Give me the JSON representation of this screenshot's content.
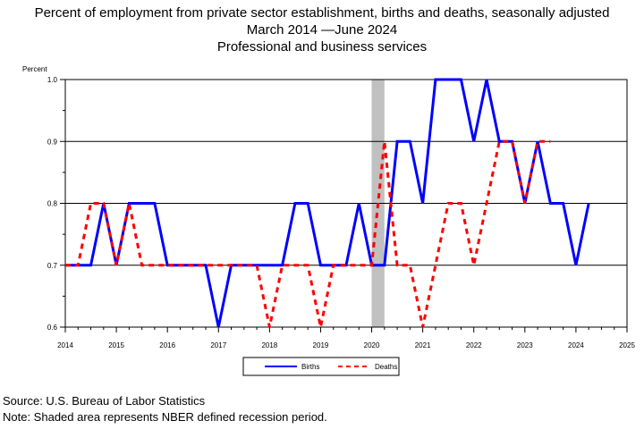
{
  "title": {
    "line1": "Percent of employment from private sector establishment, births and deaths, seasonally adjusted",
    "line2": "March 2014 —June 2024",
    "line3": "Professional and business services"
  },
  "footer": {
    "source": "Source: U.S. Bureau of Labor Statistics",
    "note": "Note: Shaded area represents NBER defined recession period."
  },
  "chart_data": {
    "type": "line",
    "ylabel": "Percent",
    "xlabel": "",
    "ylim": [
      0.6,
      1.0
    ],
    "xlim": [
      2014,
      2025
    ],
    "y_ticks": [
      "0.6",
      "0.7",
      "0.8",
      "0.9",
      "1.0"
    ],
    "x_ticks": [
      "2014",
      "2015",
      "2016",
      "2017",
      "2018",
      "2019",
      "2020",
      "2021",
      "2022",
      "2023",
      "2024",
      "2025"
    ],
    "grid": "horizontal",
    "legend_position": "bottom-center",
    "recession_shading": [
      2020.0,
      2020.25
    ],
    "recession_color": "#c0c0c0",
    "series": [
      {
        "name": "Births",
        "color": "#0000ff",
        "style": "solid",
        "x": [
          2014.0,
          2014.25,
          2014.5,
          2014.75,
          2015.0,
          2015.25,
          2015.5,
          2015.75,
          2016.0,
          2016.25,
          2016.5,
          2016.75,
          2017.0,
          2017.25,
          2017.5,
          2017.75,
          2018.0,
          2018.25,
          2018.5,
          2018.75,
          2019.0,
          2019.25,
          2019.5,
          2019.75,
          2020.0,
          2020.25,
          2020.5,
          2020.75,
          2021.0,
          2021.25,
          2021.5,
          2021.75,
          2022.0,
          2022.25,
          2022.5,
          2022.75,
          2023.0,
          2023.25,
          2023.5,
          2023.75,
          2024.0,
          2024.25
        ],
        "values": [
          0.7,
          0.7,
          0.7,
          0.8,
          0.7,
          0.8,
          0.8,
          0.8,
          0.7,
          0.7,
          0.7,
          0.7,
          0.6,
          0.7,
          0.7,
          0.7,
          0.7,
          0.7,
          0.8,
          0.8,
          0.7,
          0.7,
          0.7,
          0.8,
          0.7,
          0.7,
          0.9,
          0.9,
          0.8,
          1.0,
          1.0,
          1.0,
          0.9,
          1.0,
          0.9,
          0.9,
          0.8,
          0.9,
          0.8,
          0.8,
          0.7,
          0.8
        ]
      },
      {
        "name": "Deaths",
        "color": "#ff0000",
        "style": "dashed",
        "x": [
          2014.0,
          2014.25,
          2014.5,
          2014.75,
          2015.0,
          2015.25,
          2015.5,
          2015.75,
          2016.0,
          2016.25,
          2016.5,
          2016.75,
          2017.0,
          2017.25,
          2017.5,
          2017.75,
          2018.0,
          2018.25,
          2018.5,
          2018.75,
          2019.0,
          2019.25,
          2019.5,
          2019.75,
          2020.0,
          2020.25,
          2020.5,
          2020.75,
          2021.0,
          2021.25,
          2021.5,
          2021.75,
          2022.0,
          2022.25,
          2022.5,
          2022.75,
          2023.0,
          2023.25,
          2023.5
        ],
        "values": [
          0.7,
          0.7,
          0.8,
          0.8,
          0.7,
          0.8,
          0.7,
          0.7,
          0.7,
          0.7,
          0.7,
          0.7,
          0.7,
          0.7,
          0.7,
          0.7,
          0.6,
          0.7,
          0.7,
          0.7,
          0.6,
          0.7,
          0.7,
          0.7,
          0.7,
          0.9,
          0.7,
          0.7,
          0.6,
          0.7,
          0.8,
          0.8,
          0.7,
          0.8,
          0.9,
          0.9,
          0.8,
          0.9,
          0.9
        ]
      }
    ]
  }
}
